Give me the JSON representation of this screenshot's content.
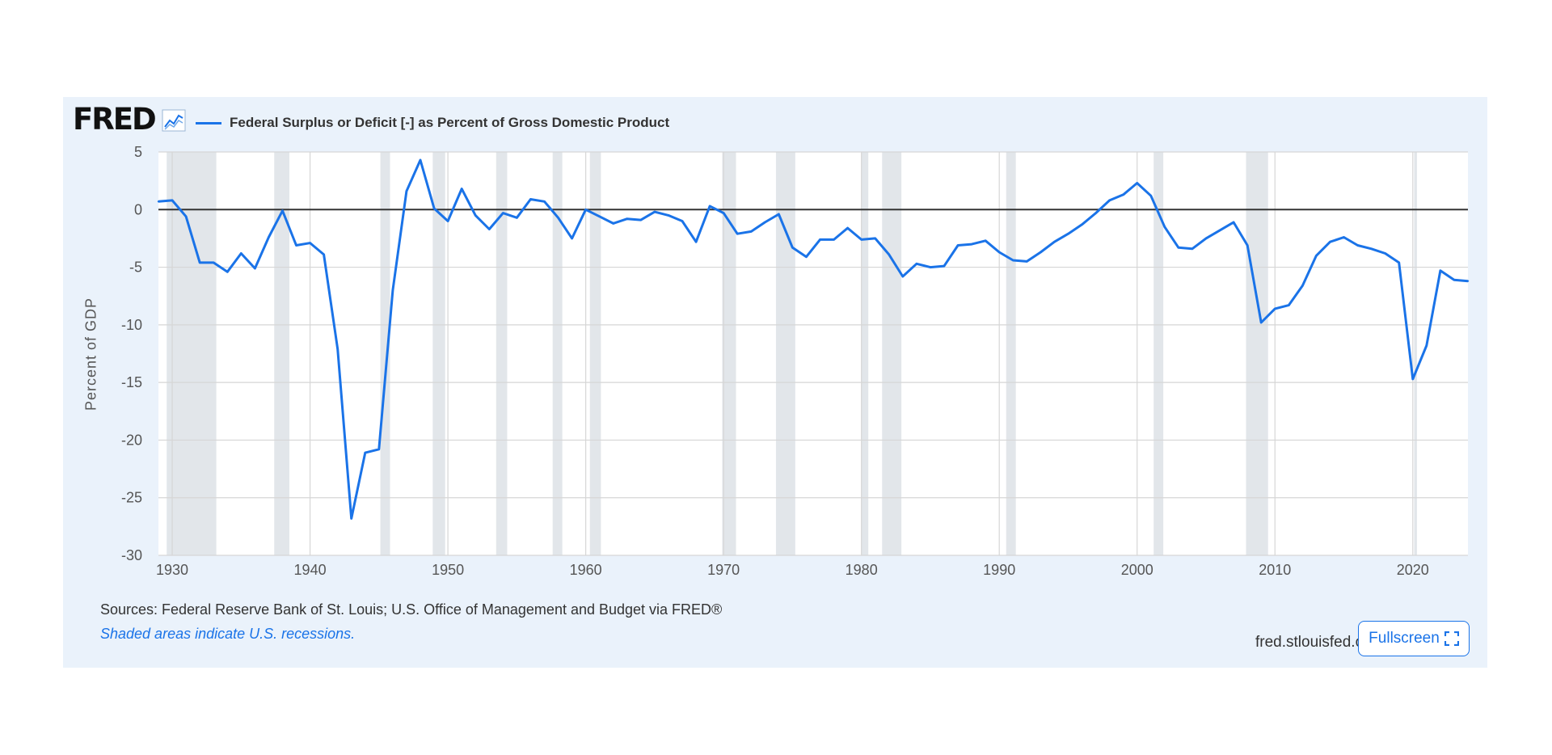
{
  "header": {
    "logo_text": "FRED",
    "logo_icon": "chart-line-icon",
    "legend_label": "Federal Surplus or Deficit [-] as Percent of Gross Domestic Product"
  },
  "footer": {
    "sources": "Sources: Federal Reserve Bank of St. Louis; U.S. Office of Management and Budget via FRED®",
    "recessions_note": "Shaded areas indicate U.S. recessions.",
    "site": "fred.stlouisfed.org",
    "fullscreen_label": "Fullscreen",
    "fullscreen_icon": "expand-icon"
  },
  "colors": {
    "line": "#1a73e8",
    "panel_bg": "#eaf2fb",
    "recession_shade": "#e2e6ea",
    "zero_line": "#333333",
    "grid": "#d6d6d6"
  },
  "chart_data": {
    "type": "line",
    "title": "",
    "ylabel": "Percent of GDP",
    "xlabel": "",
    "xlim": [
      1929,
      2024
    ],
    "ylim": [
      -30,
      5
    ],
    "x_ticks": [
      1930,
      1940,
      1950,
      1960,
      1970,
      1980,
      1990,
      2000,
      2010,
      2020
    ],
    "y_ticks": [
      5,
      0,
      -5,
      -10,
      -15,
      -20,
      -25,
      -30
    ],
    "grid": true,
    "zero_line": true,
    "recessions": [
      [
        1929.6,
        1933.2
      ],
      [
        1937.4,
        1938.5
      ],
      [
        1945.1,
        1945.8
      ],
      [
        1948.9,
        1949.8
      ],
      [
        1953.5,
        1954.3
      ],
      [
        1957.6,
        1958.3
      ],
      [
        1960.3,
        1961.1
      ],
      [
        1969.9,
        1970.9
      ],
      [
        1973.8,
        1975.2
      ],
      [
        1980.0,
        1980.5
      ],
      [
        1981.5,
        1982.9
      ],
      [
        1990.5,
        1991.2
      ],
      [
        2001.2,
        2001.9
      ],
      [
        2007.9,
        2009.5
      ],
      [
        2020.1,
        2020.3
      ]
    ],
    "series": [
      {
        "name": "Federal Surplus or Deficit [-] as Percent of Gross Domestic Product",
        "x": [
          1929,
          1930,
          1931,
          1932,
          1933,
          1934,
          1935,
          1936,
          1937,
          1938,
          1939,
          1940,
          1941,
          1942,
          1943,
          1944,
          1945,
          1946,
          1947,
          1948,
          1949,
          1950,
          1951,
          1952,
          1953,
          1954,
          1955,
          1956,
          1957,
          1958,
          1959,
          1960,
          1961,
          1962,
          1963,
          1964,
          1965,
          1966,
          1967,
          1968,
          1969,
          1970,
          1971,
          1972,
          1973,
          1974,
          1975,
          1976,
          1977,
          1978,
          1979,
          1980,
          1981,
          1982,
          1983,
          1984,
          1985,
          1986,
          1987,
          1988,
          1989,
          1990,
          1991,
          1992,
          1993,
          1994,
          1995,
          1996,
          1997,
          1998,
          1999,
          2000,
          2001,
          2002,
          2003,
          2004,
          2005,
          2006,
          2007,
          2008,
          2009,
          2010,
          2011,
          2012,
          2013,
          2014,
          2015,
          2016,
          2017,
          2018,
          2019,
          2020,
          2021,
          2022,
          2023,
          2024
        ],
        "values": [
          0.7,
          0.8,
          -0.6,
          -4.6,
          -4.6,
          -5.4,
          -3.8,
          -5.1,
          -2.4,
          -0.1,
          -3.1,
          -2.9,
          -3.9,
          -12.1,
          -26.8,
          -21.1,
          -20.8,
          -7.0,
          1.6,
          4.3,
          0.1,
          -1.0,
          1.8,
          -0.5,
          -1.7,
          -0.3,
          -0.7,
          0.9,
          0.7,
          -0.7,
          -2.5,
          0.0,
          -0.6,
          -1.2,
          -0.8,
          -0.9,
          -0.2,
          -0.5,
          -1.0,
          -2.8,
          0.3,
          -0.3,
          -2.1,
          -1.9,
          -1.1,
          -0.4,
          -3.3,
          -4.1,
          -2.6,
          -2.6,
          -1.6,
          -2.6,
          -2.5,
          -3.9,
          -5.8,
          -4.7,
          -5.0,
          -4.9,
          -3.1,
          -3.0,
          -2.7,
          -3.7,
          -4.4,
          -4.5,
          -3.7,
          -2.8,
          -2.1,
          -1.3,
          -0.3,
          0.8,
          1.3,
          2.3,
          1.2,
          -1.5,
          -3.3,
          -3.4,
          -2.5,
          -1.8,
          -1.1,
          -3.1,
          -9.8,
          -8.6,
          -8.3,
          -6.6,
          -4.0,
          -2.8,
          -2.4,
          -3.1,
          -3.4,
          -3.8,
          -4.6,
          -14.7,
          -11.8,
          -5.3,
          -6.1,
          -6.2
        ]
      }
    ]
  }
}
